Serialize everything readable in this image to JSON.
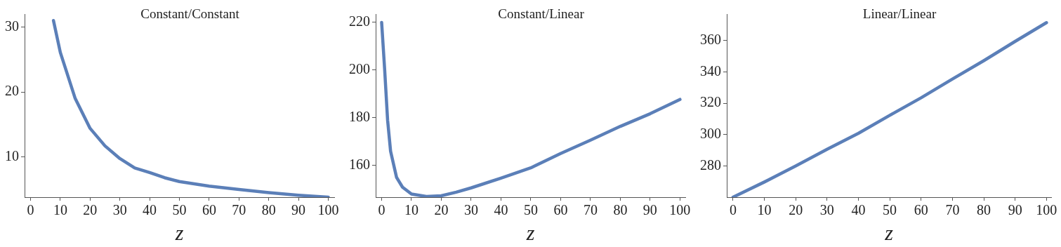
{
  "chart_data": [
    {
      "type": "line",
      "title": "Constant/Constant",
      "xlabel": "z",
      "xlim": [
        -2,
        102
      ],
      "xticks": [
        0,
        10,
        20,
        30,
        40,
        50,
        60,
        70,
        80,
        90,
        100
      ],
      "ylim": [
        3.8,
        32
      ],
      "yticks": [
        10,
        20,
        30
      ],
      "grid": false,
      "legend": false,
      "marker": "none",
      "line_style": "solid",
      "series": [
        {
          "color": "#5b7fb8",
          "x": [
            7.7,
            10,
            15,
            20,
            25,
            30,
            35,
            40,
            45,
            50,
            60,
            70,
            80,
            90,
            100
          ],
          "values": [
            31,
            26.1,
            19,
            14.4,
            11.7,
            9.75,
            8.3,
            7.6,
            6.8,
            6.2,
            5.5,
            5,
            4.5,
            4.1,
            3.8
          ]
        }
      ]
    },
    {
      "type": "line",
      "title": "Constant/Linear",
      "xlabel": "z",
      "xlim": [
        -2,
        101.8
      ],
      "xticks": [
        0,
        10,
        20,
        30,
        40,
        50,
        60,
        70,
        80,
        90,
        100
      ],
      "ylim": [
        146.7,
        223.5
      ],
      "yticks": [
        160,
        180,
        200,
        220
      ],
      "grid": false,
      "legend": false,
      "marker": "none",
      "line_style": "solid",
      "series": [
        {
          "color": "#5b7fb8",
          "x": [
            0,
            1,
            2,
            3,
            5,
            7,
            10,
            15,
            20,
            25,
            30,
            40,
            50,
            60,
            70,
            80,
            90,
            100
          ],
          "values": [
            220,
            200.5,
            179,
            166,
            155,
            150.9,
            148,
            147,
            147.3,
            148.8,
            150.6,
            154.7,
            159,
            165,
            170.6,
            176.4,
            181.7,
            187.7
          ]
        }
      ]
    },
    {
      "type": "line",
      "title": "Linear/Linear",
      "xlabel": "z",
      "xlim": [
        -2,
        101.5
      ],
      "xticks": [
        0,
        10,
        20,
        30,
        40,
        50,
        60,
        70,
        80,
        90,
        100
      ],
      "ylim": [
        260,
        377
      ],
      "yticks": [
        280,
        300,
        320,
        340,
        360
      ],
      "grid": false,
      "legend": false,
      "marker": "none",
      "line_style": "solid",
      "series": [
        {
          "color": "#5b7fb8",
          "x": [
            0,
            10,
            20,
            30,
            40,
            50,
            60,
            70,
            80,
            90,
            100
          ],
          "values": [
            260,
            269.7,
            279.9,
            290.6,
            300.8,
            312.3,
            323.5,
            335.5,
            347.2,
            359.5,
            371.5
          ]
        }
      ]
    }
  ]
}
